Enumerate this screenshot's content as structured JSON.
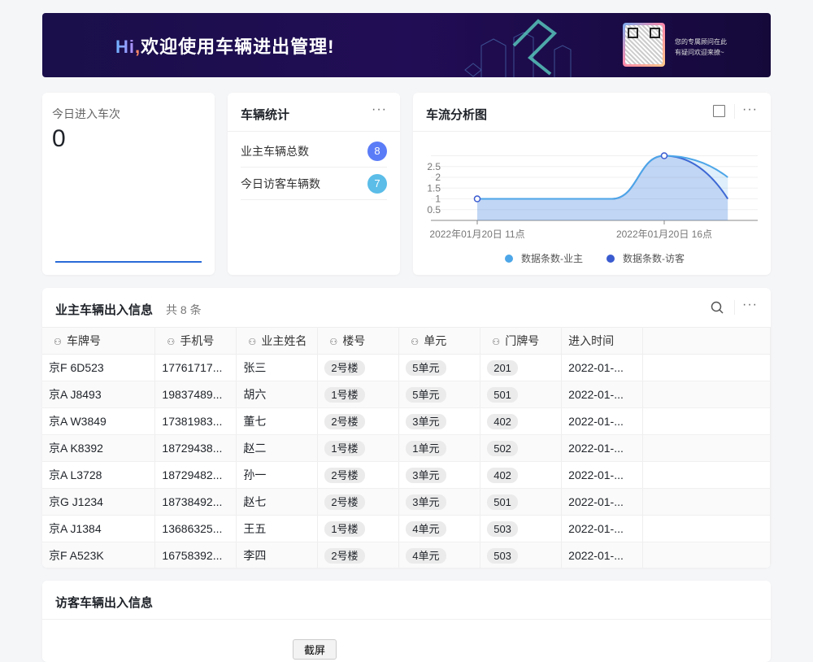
{
  "banner": {
    "greeting_hi": "Hi",
    "greeting_comma": ",",
    "greeting_text": "欢迎使用车辆进出管理!",
    "tip_line1": "您的专属顾问在此",
    "tip_line2": "有疑问欢迎来撩~"
  },
  "today_card": {
    "label": "今日进入车次",
    "value": "0"
  },
  "stats_card": {
    "title": "车辆统计",
    "items": [
      {
        "label": "业主车辆总数",
        "count": "8",
        "color": "#5b7cf7"
      },
      {
        "label": "今日访客车辆数",
        "count": "7",
        "color": "#5bbde8"
      }
    ]
  },
  "chart_card": {
    "title": "车流分析图"
  },
  "chart_data": {
    "type": "area",
    "x_unit": "hour of 2022-01-20",
    "x": [
      11,
      16,
      17.7
    ],
    "x_tick_values": [
      11,
      16
    ],
    "x_tick_labels": [
      "2022年01月20日 11点",
      "2022年01月20日 16点"
    ],
    "y_ticks": [
      "0.5",
      "1",
      "1.5",
      "2",
      "2.5"
    ],
    "ylim": [
      0,
      3
    ],
    "grid": true,
    "legend": "bottom",
    "series": [
      {
        "name": "数据条数-业主",
        "values": [
          1,
          3,
          2
        ],
        "color": "#4da6e8"
      },
      {
        "name": "数据条数-访客",
        "values": [
          1,
          3,
          1
        ],
        "color": "#3a5bd0"
      }
    ]
  },
  "owner_table": {
    "title": "业主车辆出入信息",
    "count_text": "共 8 条",
    "columns": [
      "车牌号",
      "手机号",
      "业主姓名",
      "楼号",
      "单元",
      "门牌号",
      "进入时间"
    ],
    "rows": [
      [
        "京F 6D523",
        "17761717...",
        "张三",
        "2号楼",
        "5单元",
        "201",
        "2022-01-..."
      ],
      [
        "京A J8493",
        "19837489...",
        "胡六",
        "1号楼",
        "5单元",
        "501",
        "2022-01-..."
      ],
      [
        "京A W3849",
        "17381983...",
        "董七",
        "2号楼",
        "3单元",
        "402",
        "2022-01-..."
      ],
      [
        "京A K8392",
        "18729438...",
        "赵二",
        "1号楼",
        "1单元",
        "502",
        "2022-01-..."
      ],
      [
        "京A L3728",
        "18729482...",
        "孙一",
        "2号楼",
        "3单元",
        "402",
        "2022-01-..."
      ],
      [
        "京G J1234",
        "18738492...",
        "赵七",
        "2号楼",
        "3单元",
        "501",
        "2022-01-..."
      ],
      [
        "京A J1384",
        "13686325...",
        "王五",
        "1号楼",
        "4单元",
        "503",
        "2022-01-..."
      ],
      [
        "京F A523K",
        "16758392...",
        "李四",
        "2号楼",
        "4单元",
        "503",
        "2022-01-..."
      ]
    ]
  },
  "visitor_table": {
    "title": "访客车辆出入信息",
    "screenshot_button": "截屏"
  }
}
